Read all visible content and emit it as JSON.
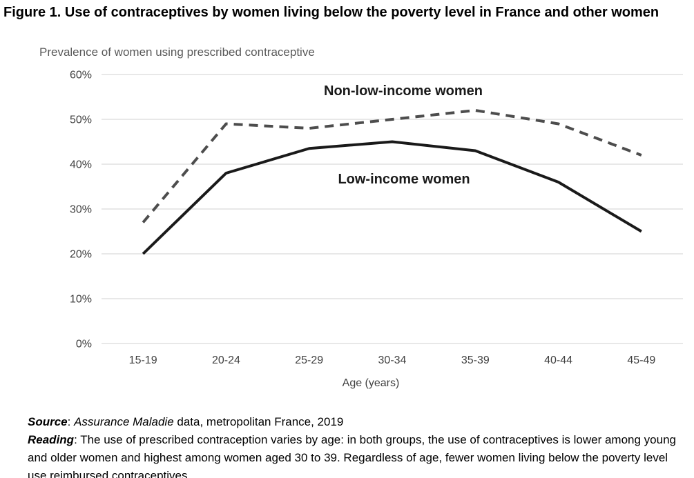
{
  "figure_title": "Figure 1. Use of contraceptives by women living below the poverty level in France and other women",
  "chart_data": {
    "type": "line",
    "title": "Prevalence of women using prescribed contraceptive",
    "categories": [
      "15-19",
      "20-24",
      "25-29",
      "30-34",
      "35-39",
      "40-44",
      "45-49"
    ],
    "series": [
      {
        "name": "Non-low-income women",
        "style": "dashed",
        "color": "#4d4d4d",
        "values": [
          27,
          49,
          48,
          50,
          52,
          49,
          42
        ]
      },
      {
        "name": "Low-income women",
        "style": "solid",
        "color": "#1a1a1a",
        "values": [
          20,
          38,
          43.5,
          45,
          43,
          36,
          25
        ]
      }
    ],
    "xlabel": "Age (years)",
    "ylabel": "Prevalence of women using prescribed contraceptive",
    "ylim": [
      0,
      60
    ],
    "ytick_step": 10,
    "ytick_labels": [
      "0%",
      "10%",
      "20%",
      "30%",
      "40%",
      "50%",
      "60%"
    ],
    "grid": true,
    "legend_position": "inline-annotations-on-plot"
  },
  "footer": {
    "source_label": "Source",
    "source_separator": ": ",
    "source_italic": "Assurance Maladie",
    "source_rest": " data, metropolitan France, 2019",
    "reading_label": "Reading",
    "reading_separator": ": ",
    "reading_text": "The use of prescribed contraception varies by age: in both groups, the use of contraceptives is lower among young and older women and highest among women aged 30 to 39. Regardless of age, fewer women living below the poverty level use reimbursed contraceptives."
  },
  "colors": {
    "gridline": "#d9d9d9",
    "axis_text": "#404040",
    "subtitle_text": "#595959",
    "annotation_text": "#1a1a1a"
  }
}
